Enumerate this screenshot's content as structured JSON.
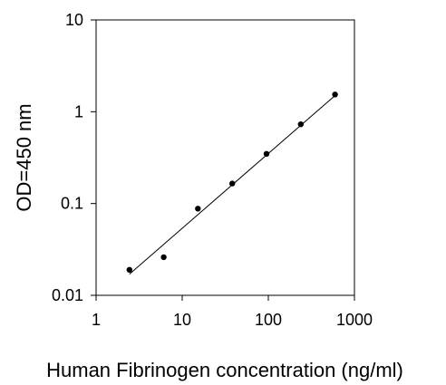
{
  "chart_data": {
    "type": "scatter",
    "xlabel": "Human Fibrinogen concentration (ng/ml)",
    "ylabel": "OD=450 nm",
    "x_scale": "log",
    "y_scale": "log",
    "xlim": [
      1,
      1000
    ],
    "ylim": [
      0.01,
      10
    ],
    "x_ticks": [
      1,
      10,
      100,
      1000
    ],
    "y_ticks": [
      0.01,
      0.1,
      1,
      10
    ],
    "x_tick_labels": [
      "1",
      "10",
      "100",
      "1000"
    ],
    "y_tick_labels": [
      "0.01",
      "0.1",
      "1",
      "10"
    ],
    "grid": false,
    "series": [
      {
        "x": [
          2.44,
          6.1,
          15.2,
          38.1,
          95.3,
          238,
          595
        ],
        "y": [
          0.019,
          0.026,
          0.088,
          0.165,
          0.348,
          0.73,
          1.54
        ]
      }
    ],
    "trendline": {
      "x": [
        2.44,
        595
      ],
      "y": [
        0.017,
        1.5
      ]
    }
  }
}
